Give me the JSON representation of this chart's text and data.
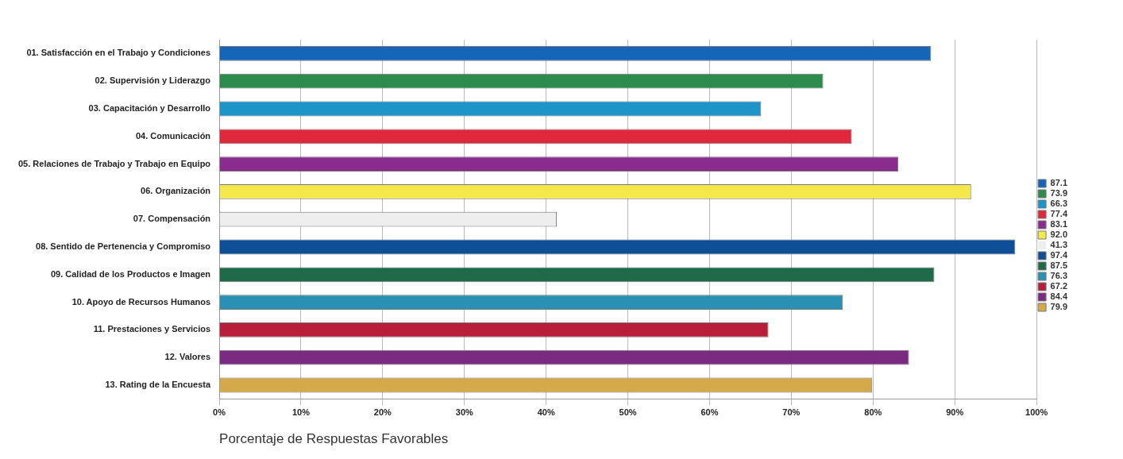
{
  "chart_data": {
    "type": "bar",
    "orientation": "horizontal",
    "xlabel": "Porcentaje de Respuestas Favorables",
    "categories": [
      "01. Satisfacción en el Trabajo y Condiciones",
      "02. Supervisión y Liderazgo",
      "03. Capacitación y Desarrollo",
      "04. Comunicación",
      "05. Relaciones de Trabajo y Trabajo en Equipo",
      "06. Organización",
      "07. Compensación",
      "08. Sentido de Pertenencia y Compromiso",
      "09. Calidad de los Productos e Imagen",
      "10. Apoyo de Recursos Humanos",
      "11. Prestaciones y Servicios",
      "12. Valores",
      "13. Rating de la Encuesta"
    ],
    "series": [
      {
        "name": "87.1",
        "color": "#1565b8",
        "values": [
          87.1,
          null,
          null,
          null,
          null,
          null,
          null,
          null,
          null,
          null,
          null,
          null,
          null
        ]
      },
      {
        "name": "73.9",
        "color": "#2e8b4e",
        "values": [
          null,
          73.9,
          null,
          null,
          null,
          null,
          null,
          null,
          null,
          null,
          null,
          null,
          null
        ]
      },
      {
        "name": "66.3",
        "color": "#1e95c8",
        "values": [
          null,
          null,
          66.3,
          null,
          null,
          null,
          null,
          null,
          null,
          null,
          null,
          null,
          null
        ]
      },
      {
        "name": "77.4",
        "color": "#e0283c",
        "values": [
          null,
          null,
          null,
          77.4,
          null,
          null,
          null,
          null,
          null,
          null,
          null,
          null,
          null
        ]
      },
      {
        "name": "83.1",
        "color": "#8a2b8e",
        "values": [
          null,
          null,
          null,
          null,
          83.1,
          null,
          null,
          null,
          null,
          null,
          null,
          null,
          null
        ]
      },
      {
        "name": "92.0",
        "color": "#f5e84a",
        "values": [
          null,
          null,
          null,
          null,
          null,
          92.0,
          null,
          null,
          null,
          null,
          null,
          null,
          null
        ]
      },
      {
        "name": "41.3",
        "color": "#eeeeee",
        "values": [
          null,
          null,
          null,
          null,
          null,
          null,
          41.3,
          null,
          null,
          null,
          null,
          null,
          null
        ]
      },
      {
        "name": "97.4",
        "color": "#0e4f98",
        "values": [
          null,
          null,
          null,
          null,
          null,
          null,
          null,
          97.4,
          null,
          null,
          null,
          null,
          null
        ]
      },
      {
        "name": "87.5",
        "color": "#1f6a48",
        "values": [
          null,
          null,
          null,
          null,
          null,
          null,
          null,
          null,
          87.5,
          null,
          null,
          null,
          null
        ]
      },
      {
        "name": "76.3",
        "color": "#2a90b4",
        "values": [
          null,
          null,
          null,
          null,
          null,
          null,
          null,
          null,
          null,
          76.3,
          null,
          null,
          null
        ]
      },
      {
        "name": "67.2",
        "color": "#b81e3a",
        "values": [
          null,
          null,
          null,
          null,
          null,
          null,
          null,
          null,
          null,
          null,
          67.2,
          null,
          null
        ]
      },
      {
        "name": "84.4",
        "color": "#7a2a80",
        "values": [
          null,
          null,
          null,
          null,
          null,
          null,
          null,
          null,
          null,
          null,
          null,
          84.4,
          null
        ]
      },
      {
        "name": "79.9",
        "color": "#d4a94a",
        "values": [
          null,
          null,
          null,
          null,
          null,
          null,
          null,
          null,
          null,
          null,
          null,
          null,
          79.9
        ]
      }
    ],
    "xlim": [
      0,
      100
    ],
    "xticks": [
      {
        "value": 0,
        "label": "0%"
      },
      {
        "value": 10,
        "label": "10%"
      },
      {
        "value": 20,
        "label": "20%"
      },
      {
        "value": 30,
        "label": "30%"
      },
      {
        "value": 40,
        "label": "40%"
      },
      {
        "value": 50,
        "label": "50%"
      },
      {
        "value": 60,
        "label": "60%"
      },
      {
        "value": 70,
        "label": "70%"
      },
      {
        "value": 80,
        "label": "80%"
      },
      {
        "value": 90,
        "label": "90%"
      },
      {
        "value": 100,
        "label": "100%"
      }
    ],
    "grid": "x",
    "legend": "right"
  }
}
